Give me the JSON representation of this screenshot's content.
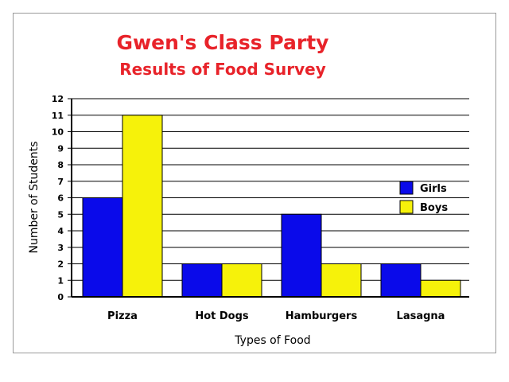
{
  "chart_data": {
    "type": "bar",
    "title": "Gwen's Class Party",
    "subtitle": "Results of Food Survey",
    "xlabel": "Types of Food",
    "ylabel": "Number of Students",
    "categories": [
      "Pizza",
      "Hot Dogs",
      "Hamburgers",
      "Lasagna"
    ],
    "series": [
      {
        "name": "Girls",
        "values": [
          6,
          2,
          5,
          2
        ],
        "color": "#0a0aea"
      },
      {
        "name": "Boys",
        "values": [
          11,
          2,
          2,
          1
        ],
        "color": "#f6f20a"
      }
    ],
    "ylim": [
      0,
      12
    ],
    "yticks": [
      "0",
      "1",
      "2",
      "3",
      "4",
      "5",
      "6",
      "7",
      "8",
      "9",
      "10",
      "11",
      "12"
    ],
    "grid": true,
    "legend_position": "right"
  },
  "colors": {
    "title": "#e8232a",
    "gridline": "#000000",
    "frame": "#9a9a9a"
  }
}
